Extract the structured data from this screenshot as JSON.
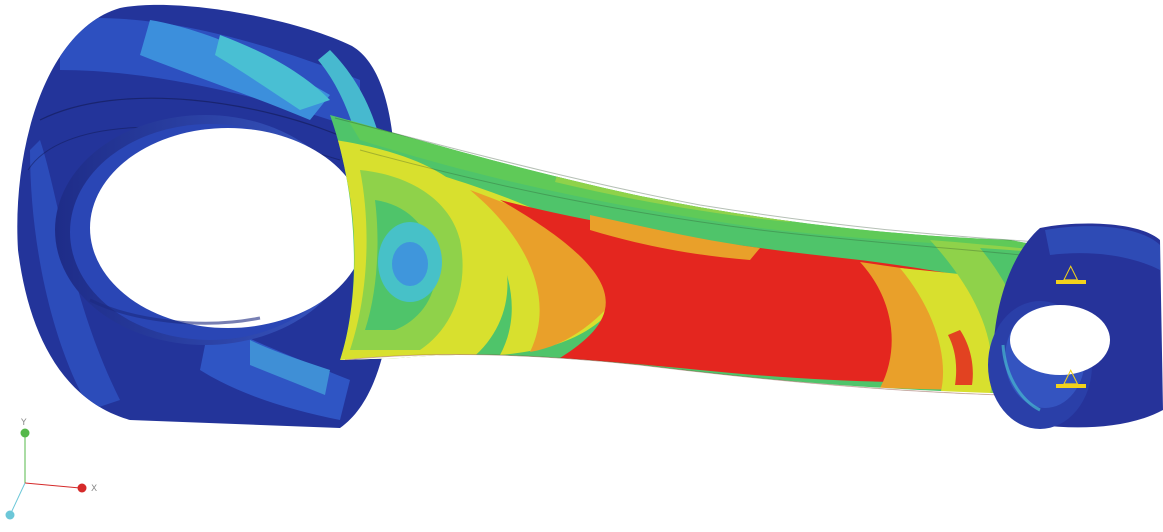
{
  "viewport": {
    "model": "connecting-rod",
    "contour_palette": [
      "#1f2f8f",
      "#2e58c9",
      "#3f96dc",
      "#47c1c8",
      "#4fc46a",
      "#8fd24a",
      "#d8e02e",
      "#e9a02a",
      "#e4261f"
    ]
  },
  "triad": {
    "y_label": "Y",
    "x_label": "X",
    "y_color": "#55b84a",
    "x_color": "#d52a2a",
    "z_color": "#6cc7d8"
  },
  "boundary_condition": {
    "symbol_color": "#f2d21b",
    "glyph": "△"
  }
}
